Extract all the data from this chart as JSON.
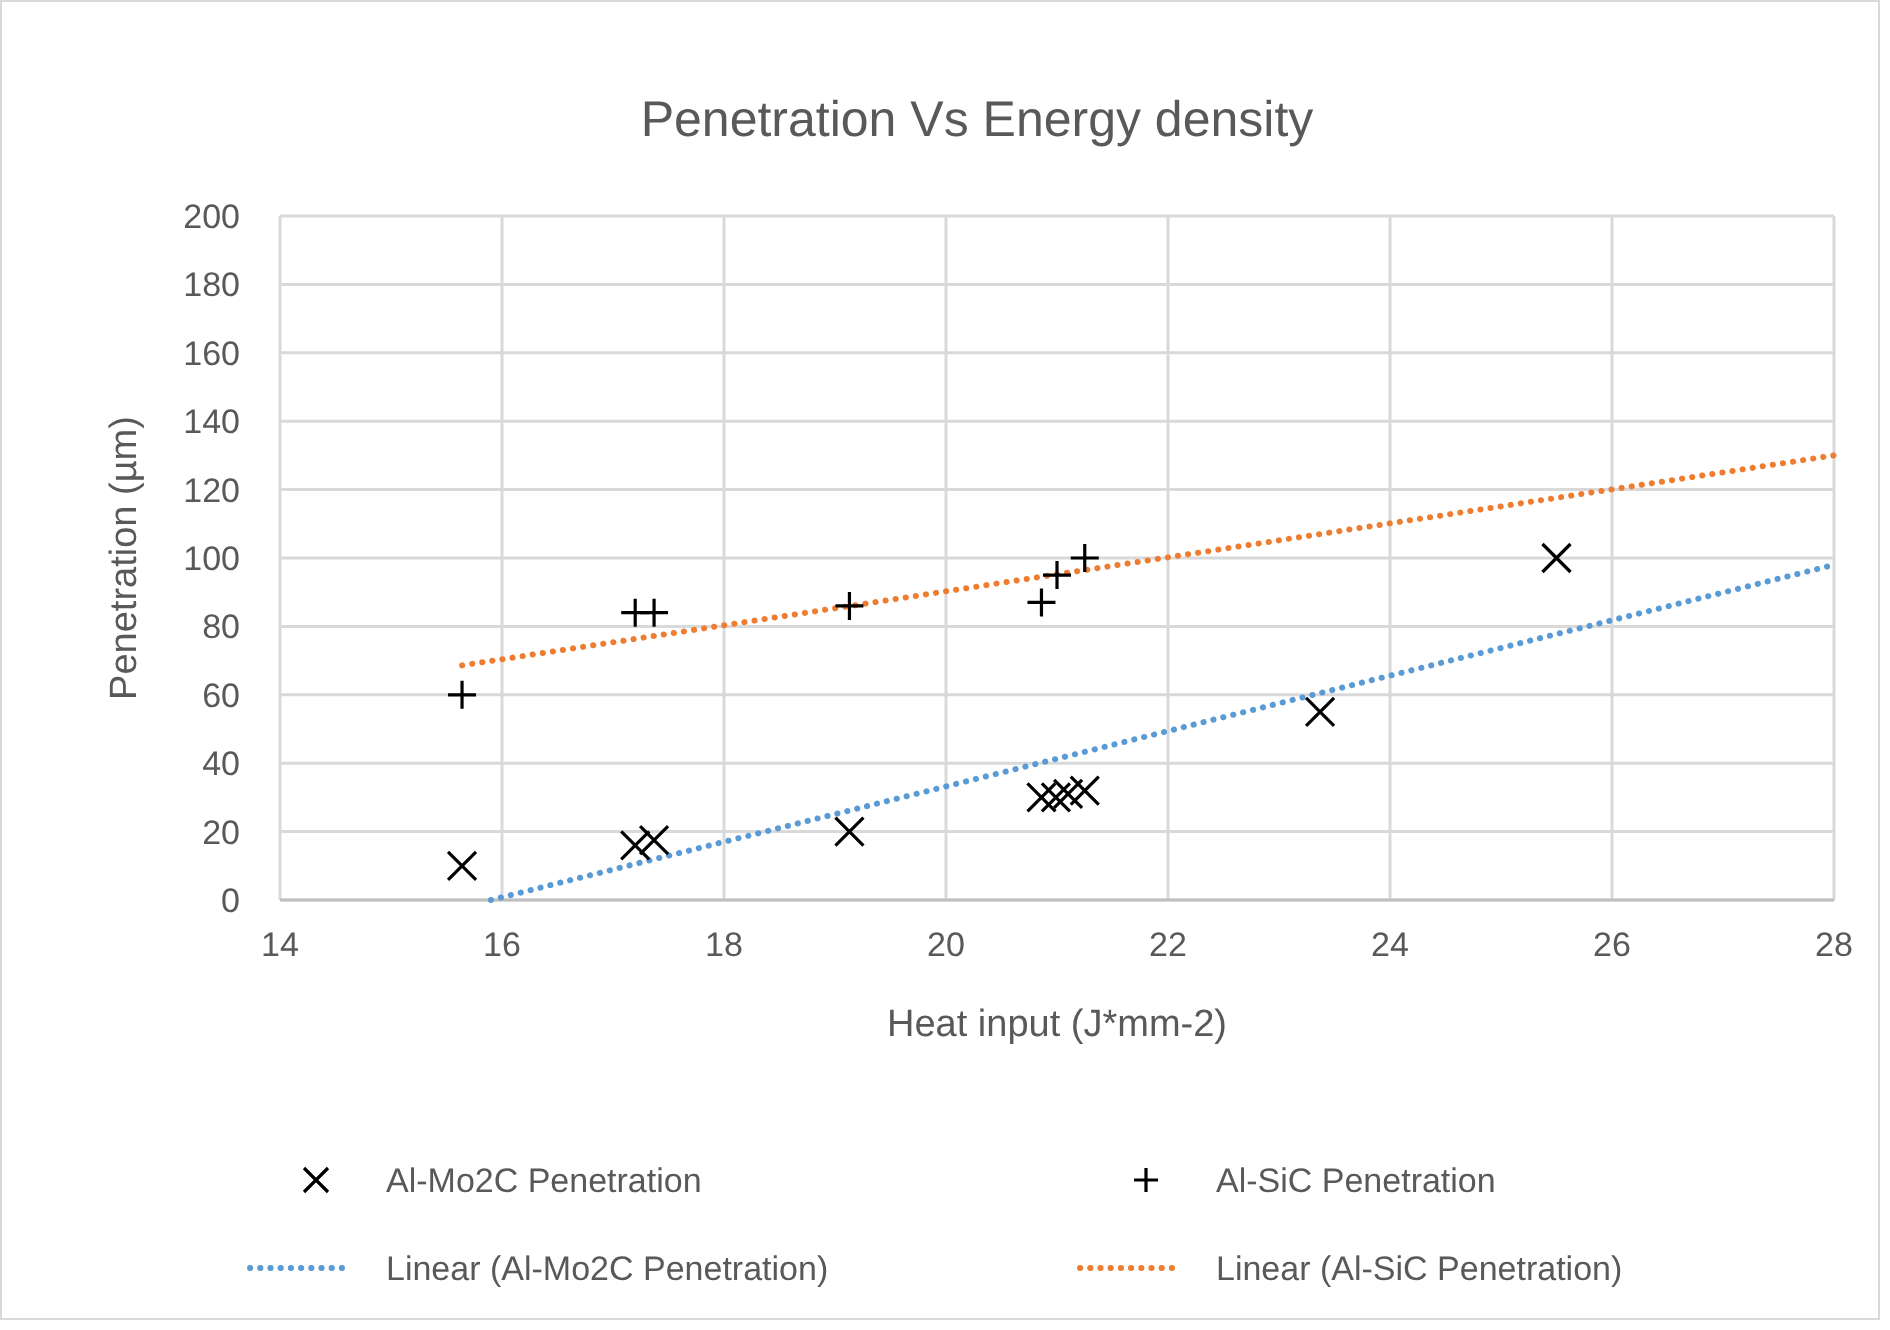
{
  "chart_data": {
    "type": "scatter",
    "title": "Penetration Vs Energy density",
    "xlabel": "Heat input (J*mm-2)",
    "ylabel": "Penetration (µm)",
    "xlim": [
      14,
      28
    ],
    "xticks": [
      14,
      16,
      18,
      20,
      22,
      24,
      26,
      28
    ],
    "ylim": [
      0,
      200
    ],
    "yticks": [
      0,
      20,
      40,
      60,
      80,
      100,
      120,
      140,
      160,
      180,
      200
    ],
    "grid": true,
    "legend": "bottom",
    "series": [
      {
        "name": "Al-Mo2C Penetration",
        "color": "#000000",
        "marker": "x",
        "x": [
          15.64,
          17.2,
          17.37,
          19.13,
          20.86,
          20.99,
          21.1,
          21.25,
          23.37,
          25.5
        ],
        "values": [
          10,
          16,
          17.5,
          20,
          30,
          30,
          31,
          32,
          55,
          100
        ]
      },
      {
        "name": "Al-SiC Penetration",
        "color": "#000000",
        "marker": "cross",
        "x": [
          15.64,
          17.2,
          17.37,
          19.13,
          20.86,
          21.0,
          21.25
        ],
        "values": [
          60,
          84,
          84,
          86,
          87,
          95,
          100
        ]
      },
      {
        "name": "Linear (Al-Mo2C Penetration)",
        "type": "line",
        "color": "#5b9bd5",
        "line_style": "dotted",
        "x": [
          15.9,
          28
        ],
        "values": [
          0,
          98
        ]
      },
      {
        "name": "Linear (Al-SiC Penetration)",
        "type": "line",
        "color": "#ed7d31",
        "line_style": "dotted",
        "x": [
          15.64,
          28
        ],
        "values": [
          68.6,
          130
        ]
      }
    ]
  }
}
